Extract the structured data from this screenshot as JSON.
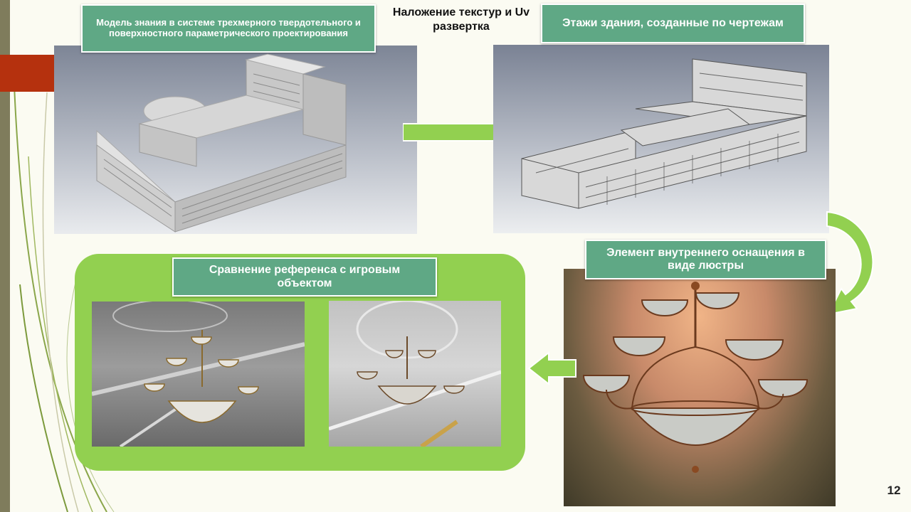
{
  "labels": {
    "model": "Модель знания в системе трехмерного твердотельного и поверхностного параметрического проектирования",
    "texture": "Наложение текстур и Uv развертка",
    "floors": "Этажи здания, созданные по чертежам",
    "chandelier": "Элемент внутреннего оснащения в виде люстры",
    "comparison": "Сравнение референса с игровым объектом"
  },
  "page_number": "12",
  "colors": {
    "label_bg": "#5fa885",
    "arrow": "#92d050",
    "frame": "#92d050",
    "accent_red": "#b5310e",
    "background": "#fbfbf2"
  },
  "icons": {
    "arrows": [
      "right-arrow-icon",
      "curved-down-arrow-icon",
      "left-arrow-icon"
    ]
  }
}
